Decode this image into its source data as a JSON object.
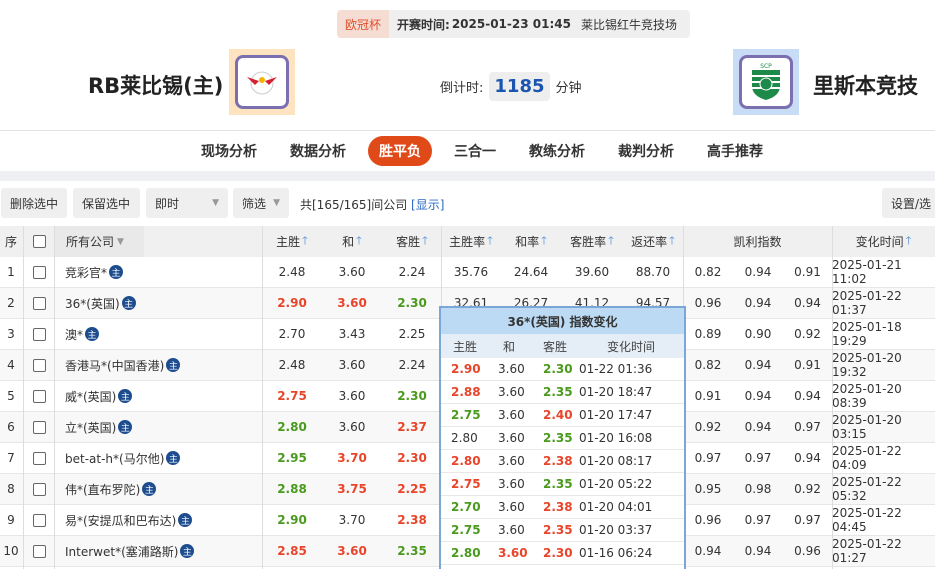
{
  "match": {
    "cup": "欧冠杯",
    "time_label": "开赛时间:",
    "time": "2025-01-23 01:45",
    "venue": "莱比锡红牛竞技场",
    "home": "RB莱比锡(主)",
    "away": "里斯本竞技",
    "countdown_label": "倒计时:",
    "countdown": "1185",
    "countdown_unit": "分钟"
  },
  "tabs": [
    {
      "label": "现场分析"
    },
    {
      "label": "数据分析"
    },
    {
      "label": "胜平负",
      "active": true
    },
    {
      "label": "三合一"
    },
    {
      "label": "教练分析"
    },
    {
      "label": "裁判分析"
    },
    {
      "label": "高手推荐"
    }
  ],
  "toolbar": {
    "delete": "删除选中",
    "keep": "保留选中",
    "mode": "即时",
    "filter": "筛选",
    "count_text": "共[165/165]间公司",
    "show": "[显示]",
    "settings": "设置/选"
  },
  "columns": {
    "idx": "序",
    "company": "所有公司",
    "home": "主胜",
    "draw": "和",
    "away": "客胜",
    "home_rate": "主胜率",
    "draw_rate": "和率",
    "away_rate": "客胜率",
    "return_rate": "返还率",
    "kelly": "凯利指数",
    "time": "变化时间"
  },
  "colors": {
    "up": "#e8452a",
    "down": "#4a9a1e",
    "accent": "#e04a18"
  },
  "rows": [
    {
      "i": "1",
      "name": "竞彩官*",
      "h": "2.48",
      "d": "3.60",
      "a": "2.24",
      "hc": "",
      "dc": "",
      "ac": "",
      "hr": "35.76",
      "dr": "24.64",
      "ar": "39.60",
      "rr": "88.70",
      "k1": "0.82",
      "k2": "0.94",
      "k3": "0.91",
      "t": "2025-01-21 11:02"
    },
    {
      "i": "2",
      "name": "36*(英国)",
      "h": "2.90",
      "d": "3.60",
      "a": "2.30",
      "hc": "red",
      "dc": "red",
      "ac": "green",
      "hr": "32.61",
      "dr": "26.27",
      "ar": "41.12",
      "rr": "94.57",
      "k1": "0.96",
      "k2": "0.94",
      "k3": "0.94",
      "t": "2025-01-22 01:37"
    },
    {
      "i": "3",
      "name": "澳*",
      "h": "2.70",
      "d": "3.43",
      "a": "2.25",
      "hc": "",
      "dc": "",
      "ac": "",
      "k1": "0.89",
      "k2": "0.90",
      "k3": "0.92",
      "t": "2025-01-18 19:29"
    },
    {
      "i": "4",
      "name": "香港马*(中国香港)",
      "h": "2.48",
      "d": "3.60",
      "a": "2.24",
      "hc": "",
      "dc": "",
      "ac": "",
      "k1": "0.82",
      "k2": "0.94",
      "k3": "0.91",
      "t": "2025-01-20 19:32"
    },
    {
      "i": "5",
      "name": "威*(英国)",
      "h": "2.75",
      "d": "3.60",
      "a": "2.30",
      "hc": "red",
      "dc": "",
      "ac": "green",
      "k1": "0.91",
      "k2": "0.94",
      "k3": "0.94",
      "t": "2025-01-20 08:39"
    },
    {
      "i": "6",
      "name": "立*(英国)",
      "h": "2.80",
      "d": "3.60",
      "a": "2.37",
      "hc": "green",
      "dc": "",
      "ac": "red",
      "k1": "0.92",
      "k2": "0.94",
      "k3": "0.97",
      "t": "2025-01-20 03:15"
    },
    {
      "i": "7",
      "name": "bet-at-h*(马尔他)",
      "h": "2.95",
      "d": "3.70",
      "a": "2.30",
      "hc": "green",
      "dc": "red",
      "ac": "red",
      "k1": "0.97",
      "k2": "0.97",
      "k3": "0.94",
      "t": "2025-01-22 04:09"
    },
    {
      "i": "8",
      "name": "伟*(直布罗陀)",
      "h": "2.88",
      "d": "3.75",
      "a": "2.25",
      "hc": "green",
      "dc": "red",
      "ac": "red",
      "k1": "0.95",
      "k2": "0.98",
      "k3": "0.92",
      "t": "2025-01-22 05:32"
    },
    {
      "i": "9",
      "name": "易*(安提瓜和巴布达)",
      "h": "2.90",
      "d": "3.70",
      "a": "2.38",
      "hc": "green",
      "dc": "",
      "ac": "red",
      "k1": "0.96",
      "k2": "0.97",
      "k3": "0.97",
      "t": "2025-01-22 04:45"
    },
    {
      "i": "10",
      "name": "Interwet*(塞浦路斯)",
      "h": "2.85",
      "d": "3.60",
      "a": "2.35",
      "hc": "red",
      "dc": "red",
      "ac": "green",
      "k1": "0.94",
      "k2": "0.94",
      "k3": "0.96",
      "t": "2025-01-22 01:27"
    }
  ],
  "badge": "主",
  "popup": {
    "title": "36*(英国) 指数变化",
    "cols": [
      "主胜",
      "和",
      "客胜",
      "变化时间"
    ],
    "rows": [
      {
        "h": "2.90",
        "d": "3.60",
        "a": "2.30",
        "t": "01-22 01:36",
        "hc": "red",
        "dc": "",
        "ac": "green"
      },
      {
        "h": "2.88",
        "d": "3.60",
        "a": "2.35",
        "t": "01-20 18:47",
        "hc": "red",
        "dc": "",
        "ac": "green"
      },
      {
        "h": "2.75",
        "d": "3.60",
        "a": "2.40",
        "t": "01-20 17:47",
        "hc": "green",
        "dc": "",
        "ac": "red"
      },
      {
        "h": "2.80",
        "d": "3.60",
        "a": "2.35",
        "t": "01-20 16:08",
        "hc": "",
        "dc": "",
        "ac": "green"
      },
      {
        "h": "2.80",
        "d": "3.60",
        "a": "2.38",
        "t": "01-20 08:17",
        "hc": "red",
        "dc": "",
        "ac": "red"
      },
      {
        "h": "2.75",
        "d": "3.60",
        "a": "2.35",
        "t": "01-20 05:22",
        "hc": "red",
        "dc": "",
        "ac": "green"
      },
      {
        "h": "2.70",
        "d": "3.60",
        "a": "2.38",
        "t": "01-20 04:01",
        "hc": "green",
        "dc": "",
        "ac": "red"
      },
      {
        "h": "2.75",
        "d": "3.60",
        "a": "2.35",
        "t": "01-20 03:37",
        "hc": "green",
        "dc": "",
        "ac": "red"
      },
      {
        "h": "2.80",
        "d": "3.60",
        "a": "2.30",
        "t": "01-16 06:24",
        "hc": "green",
        "dc": "red",
        "ac": "red"
      }
    ]
  }
}
